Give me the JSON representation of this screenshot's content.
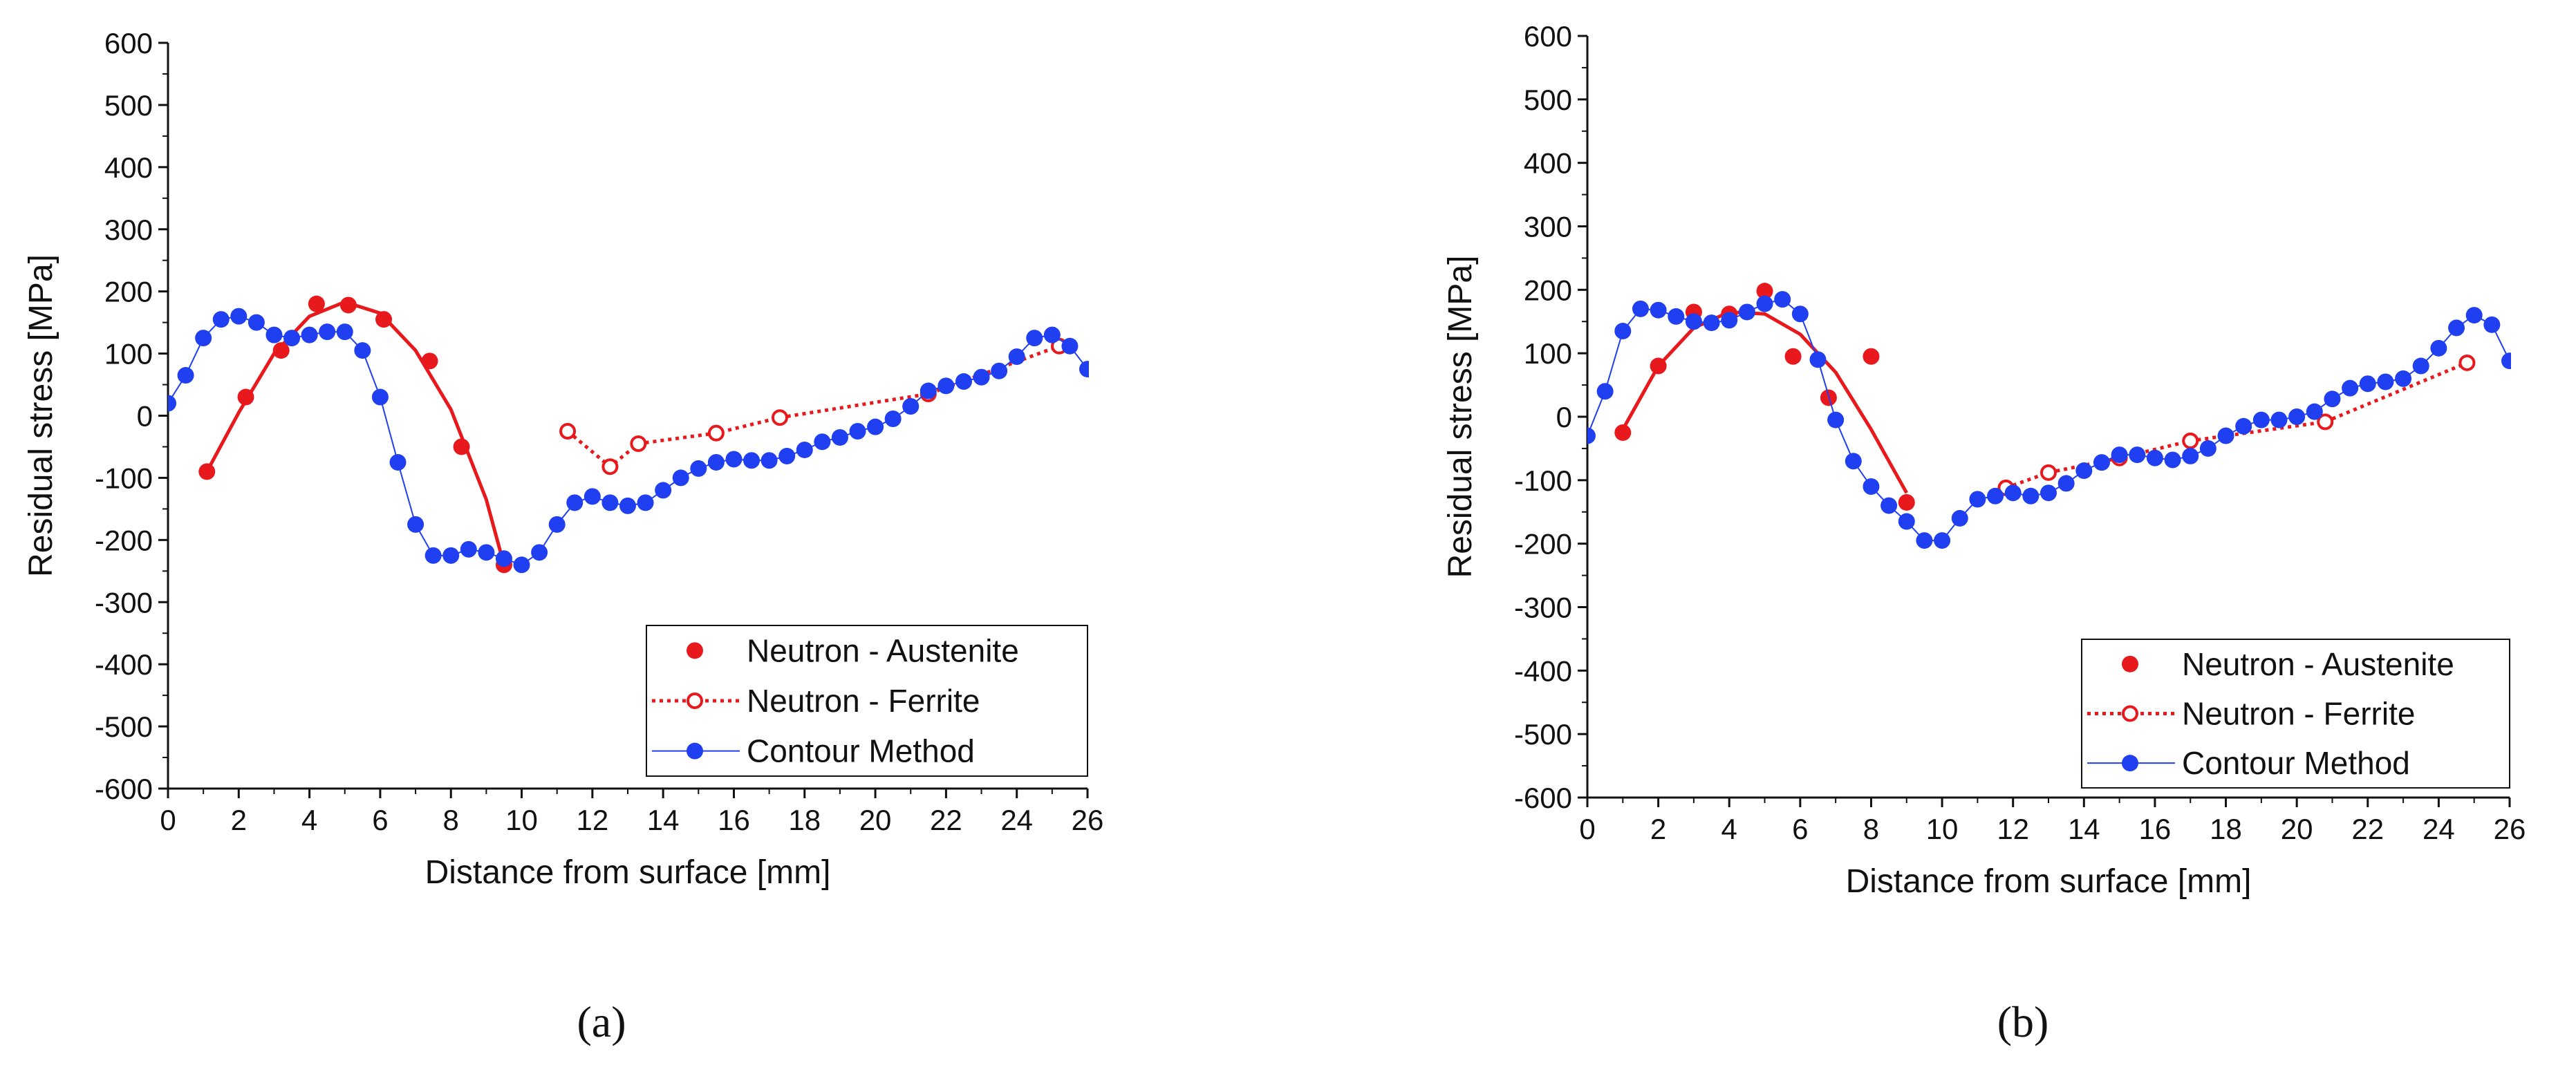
{
  "figure": {
    "panels": [
      "(a)",
      "(b)"
    ]
  },
  "colors": {
    "austenite": "#e8191c",
    "contour": "#1f3ff0",
    "axis": "#111111"
  },
  "chart_data": [
    {
      "type": "scatter",
      "panel_label": "(a)",
      "xlabel": "Distance from surface [mm]",
      "ylabel": "Residual stress [MPa]",
      "xlim": [
        0,
        26
      ],
      "ylim": [
        -600,
        600
      ],
      "xticks": [
        "0",
        "2",
        "4",
        "6",
        "8",
        "10",
        "12",
        "14",
        "16",
        "18",
        "20",
        "22",
        "24",
        "26"
      ],
      "yticks": [
        "-600",
        "-500",
        "-400",
        "-300",
        "-200",
        "-100",
        "0",
        "100",
        "200",
        "300",
        "400",
        "500",
        "600"
      ],
      "legend": [
        "Neutron - Austenite",
        "Neutron - Ferrite",
        "Contour Method"
      ],
      "legend_position": "bottom-right",
      "series": [
        {
          "name": "Neutron - Austenite",
          "style": "filled-points",
          "x": [
            1.1,
            2.2,
            3.2,
            4.2,
            5.1,
            6.1,
            7.4,
            8.3,
            9.5
          ],
          "y": [
            -90,
            30,
            105,
            180,
            178,
            155,
            88,
            -50,
            -240
          ]
        },
        {
          "name": "Neutron - Austenite fit",
          "style": "solid-curve",
          "x": [
            1.1,
            2.0,
            3.0,
            4.0,
            5.0,
            6.0,
            7.0,
            8.0,
            9.0,
            9.5
          ],
          "y": [
            -90,
            5,
            100,
            160,
            183,
            165,
            105,
            10,
            -135,
            -240
          ]
        },
        {
          "name": "Neutron - Ferrite",
          "style": "open-points-dotted",
          "x": [
            11.3,
            12.5,
            13.3,
            15.5,
            17.3,
            21.5,
            25.2
          ],
          "y": [
            -25,
            -82,
            -45,
            -28,
            -3,
            35,
            112
          ]
        },
        {
          "name": "Contour Method",
          "style": "filled-points-line",
          "x": [
            0.0,
            0.5,
            1.0,
            1.5,
            2.0,
            2.5,
            3.0,
            3.5,
            4.0,
            4.5,
            5.0,
            5.5,
            6.0,
            6.5,
            7.0,
            7.5,
            8.0,
            8.5,
            9.0,
            9.5,
            10.0,
            10.5,
            11.0,
            11.5,
            12.0,
            12.5,
            13.0,
            13.5,
            14.0,
            14.5,
            15.0,
            15.5,
            16.0,
            16.5,
            17.0,
            17.5,
            18.0,
            18.5,
            19.0,
            19.5,
            20.0,
            20.5,
            21.0,
            21.5,
            22.0,
            22.5,
            23.0,
            23.5,
            24.0,
            24.5,
            25.0,
            25.5,
            26.0
          ],
          "y": [
            20,
            65,
            125,
            155,
            160,
            150,
            130,
            125,
            130,
            135,
            135,
            105,
            30,
            -75,
            -175,
            -225,
            -225,
            -215,
            -220,
            -230,
            -240,
            -220,
            -175,
            -140,
            -130,
            -140,
            -145,
            -140,
            -120,
            -100,
            -85,
            -75,
            -70,
            -72,
            -72,
            -65,
            -55,
            -42,
            -35,
            -25,
            -18,
            -5,
            15,
            40,
            48,
            55,
            62,
            72,
            95,
            125,
            130,
            112,
            75
          ]
        }
      ]
    },
    {
      "type": "scatter",
      "panel_label": "(b)",
      "xlabel": "Distance from surface [mm]",
      "ylabel": "Residual stress [MPa]",
      "xlim": [
        0,
        26
      ],
      "ylim": [
        -600,
        600
      ],
      "xticks": [
        "0",
        "2",
        "4",
        "6",
        "8",
        "10",
        "12",
        "14",
        "16",
        "18",
        "20",
        "22",
        "24",
        "26"
      ],
      "yticks": [
        "-600",
        "-500",
        "-400",
        "-300",
        "-200",
        "-100",
        "0",
        "100",
        "200",
        "300",
        "400",
        "500",
        "600"
      ],
      "legend": [
        "Neutron - Austenite",
        "Neutron - Ferrite",
        "Contour Method"
      ],
      "legend_position": "bottom-right",
      "series": [
        {
          "name": "Neutron - Austenite",
          "style": "filled-points",
          "x": [
            1.0,
            2.0,
            3.0,
            4.0,
            5.0,
            5.8,
            6.8,
            8.0,
            9.0
          ],
          "y": [
            -25,
            80,
            165,
            162,
            198,
            95,
            30,
            95,
            -135
          ]
        },
        {
          "name": "Neutron - Austenite fit",
          "style": "solid-curve",
          "x": [
            1.0,
            2.0,
            3.0,
            4.0,
            5.0,
            6.0,
            7.0,
            8.0,
            9.0
          ],
          "y": [
            -20,
            80,
            140,
            165,
            162,
            130,
            70,
            -20,
            -120
          ]
        },
        {
          "name": "Neutron - Ferrite",
          "style": "open-points-dotted",
          "x": [
            11.8,
            13.0,
            15.0,
            17.0,
            20.8,
            24.8
          ],
          "y": [
            -112,
            -88,
            -65,
            -38,
            -8,
            85
          ]
        },
        {
          "name": "Contour Method",
          "style": "filled-points-line",
          "x": [
            0.0,
            0.5,
            1.0,
            1.5,
            2.0,
            2.5,
            3.0,
            3.5,
            4.0,
            4.5,
            5.0,
            5.5,
            6.0,
            6.5,
            7.0,
            7.5,
            8.0,
            8.5,
            9.0,
            9.5,
            10.0,
            10.5,
            11.0,
            11.5,
            12.0,
            12.5,
            13.0,
            13.5,
            14.0,
            14.5,
            15.0,
            15.5,
            16.0,
            16.5,
            17.0,
            17.5,
            18.0,
            18.5,
            19.0,
            19.5,
            20.0,
            20.5,
            21.0,
            21.5,
            22.0,
            22.5,
            23.0,
            23.5,
            24.0,
            24.5,
            25.0,
            25.5,
            26.0
          ],
          "y": [
            -30,
            40,
            135,
            170,
            168,
            158,
            150,
            148,
            152,
            165,
            178,
            185,
            162,
            90,
            -5,
            -70,
            -110,
            -140,
            -165,
            -195,
            -195,
            -160,
            -130,
            -125,
            -120,
            -125,
            -120,
            -105,
            -85,
            -72,
            -60,
            -60,
            -65,
            -68,
            -62,
            -50,
            -30,
            -15,
            -5,
            -5,
            0,
            8,
            28,
            45,
            52,
            55,
            60,
            80,
            108,
            140,
            160,
            145,
            88
          ]
        }
      ]
    }
  ]
}
